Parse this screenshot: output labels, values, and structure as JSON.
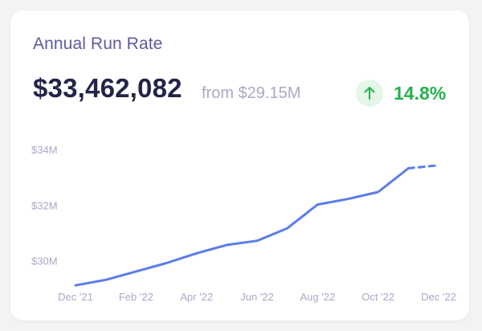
{
  "card": {
    "title": "Annual Run Rate",
    "value": "$33,462,082",
    "from_text": "from $29.15M",
    "change_pct": "14.8%",
    "trend_icon": "arrow-up-icon",
    "colors": {
      "title": "#5e5aa0",
      "value": "#23234a",
      "muted": "#a9a9c9",
      "positive": "#22b24c",
      "positive_bg": "#e3f6e8",
      "line": "#5a7de8"
    }
  },
  "chart_data": {
    "type": "line",
    "title": "",
    "xlabel": "",
    "ylabel": "",
    "x_ticks": [
      "Dec '21",
      "Feb '22",
      "Apr '22",
      "Jun '22",
      "Aug '22",
      "Oct '22",
      "Dec '22"
    ],
    "y_ticks": [
      "$30M",
      "$32M",
      "$34M"
    ],
    "y_tick_values": [
      30,
      32,
      34
    ],
    "ylim": [
      29.3,
      34.0
    ],
    "grid": false,
    "legend": "none",
    "series": [
      {
        "style": "solid",
        "x": [
          "Dec '21",
          "Jan '22",
          "Feb '22",
          "Mar '22",
          "Apr '22",
          "May '22",
          "Jun '22",
          "Jul '22",
          "Aug '22",
          "Sep '22",
          "Oct '22",
          "Nov '22"
        ],
        "values": [
          29.15,
          29.35,
          29.65,
          29.95,
          30.3,
          30.6,
          30.75,
          31.2,
          32.05,
          32.25,
          32.5,
          33.35
        ]
      },
      {
        "style": "dashed",
        "x": [
          "Nov '22",
          "Dec '22"
        ],
        "values": [
          33.35,
          33.46
        ]
      }
    ]
  }
}
